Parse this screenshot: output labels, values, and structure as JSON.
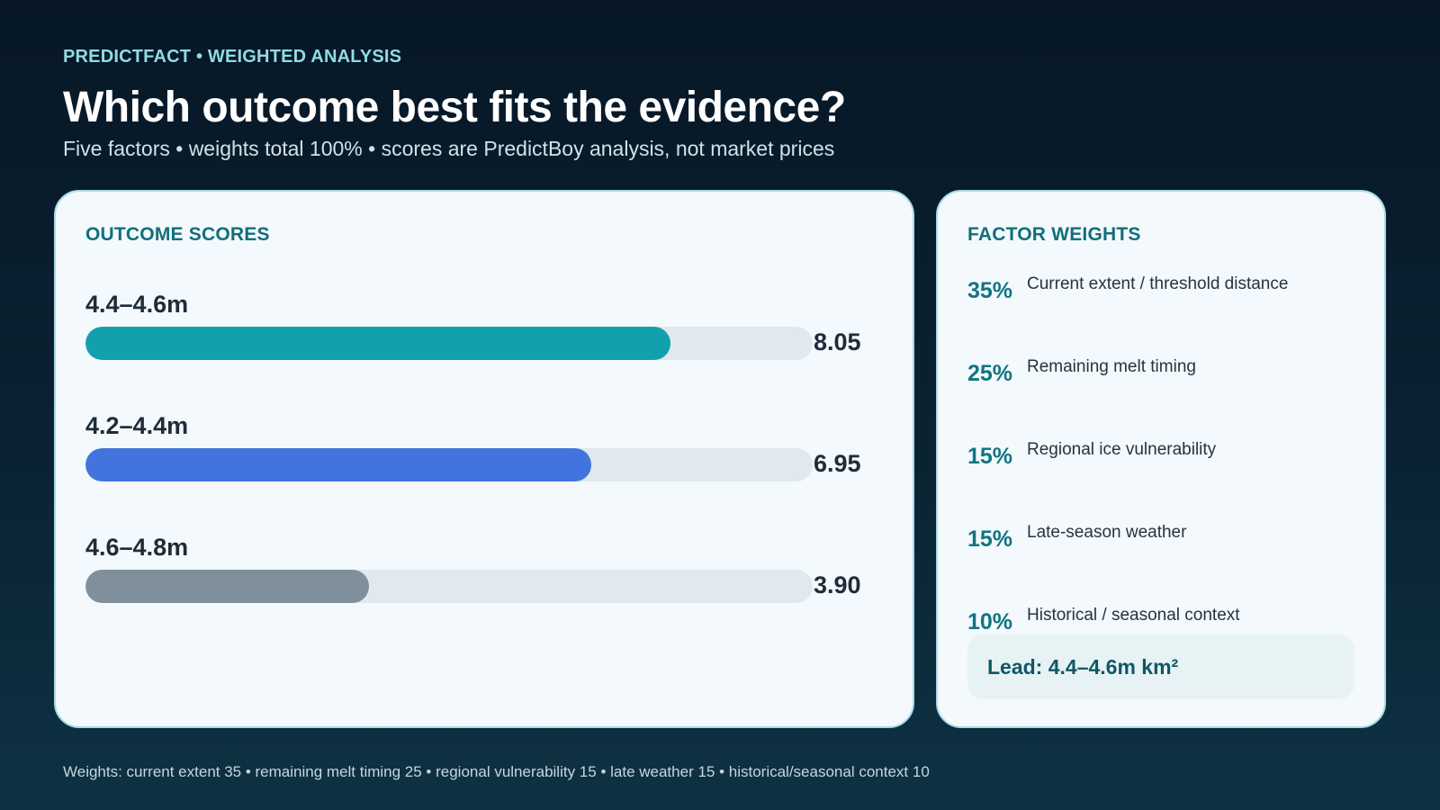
{
  "header": {
    "eyebrow": "PREDICTFACT • WEIGHTED ANALYSIS",
    "title": "Which outcome best fits the evidence?",
    "subtitle": "Five factors • weights total 100% • scores are PredictBoy analysis, not market prices"
  },
  "scores_panel": {
    "title": "OUTCOME SCORES"
  },
  "chart_data": {
    "type": "bar",
    "orientation": "horizontal",
    "title": "OUTCOME SCORES",
    "xlim": [
      0,
      10
    ],
    "categories": [
      "4.4–4.6m",
      "4.2–4.4m",
      "4.6–4.8m"
    ],
    "values": [
      8.05,
      6.95,
      3.9
    ],
    "value_labels": [
      "8.05",
      "6.95",
      "3.90"
    ],
    "colors": [
      "#13a0ad",
      "#4374de",
      "#7f909c"
    ],
    "grid": false,
    "legend": "none"
  },
  "weights_panel": {
    "title": "FACTOR WEIGHTS",
    "items": [
      {
        "pct": "35%",
        "label": "Current extent / threshold distance"
      },
      {
        "pct": "25%",
        "label": "Remaining melt timing"
      },
      {
        "pct": "15%",
        "label": "Regional ice vulnerability"
      },
      {
        "pct": "15%",
        "label": "Late-season weather"
      },
      {
        "pct": "10%",
        "label": "Historical / seasonal context"
      }
    ],
    "lead": "Lead: 4.4–4.6m km²"
  },
  "footer": "Weights: current extent 35 • remaining melt timing 25 • regional vulnerability 15 • late weather 15 • historical/seasonal context 10"
}
